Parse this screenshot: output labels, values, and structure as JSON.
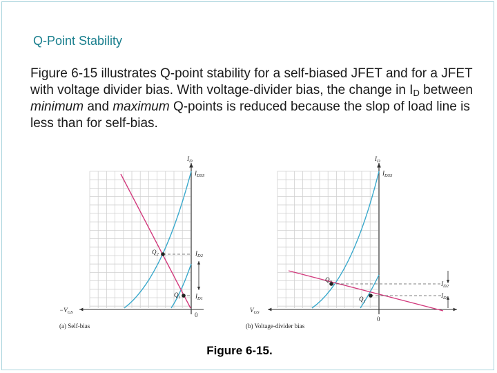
{
  "slide": {
    "title": "Q-Point Stability",
    "body": {
      "p1": "Figure 6-15 illustrates Q-point stability for a self-biased JFET and for a JFET with voltage divider bias. With voltage-divider bias, the change in I",
      "sub": "D",
      "p2": " between ",
      "em1": "minimum",
      "p3": " and ",
      "em2": "maximum",
      "p4": " Q-points is reduced because the slop of load line is less than for self-bias."
    },
    "caption": "Figure 6-15."
  },
  "diagram": {
    "panel_a": {
      "caption": "(a) Self-bias",
      "y_axis_label": "I",
      "y_axis_sub": "D",
      "x_axis_label": "−V",
      "x_axis_sub": "GS",
      "origin_label": "0",
      "idss_label": "I",
      "idss_sub": "DSS",
      "id2_label": "I",
      "id2_sub": "D2",
      "id1_label": "I",
      "id1_sub": "D1",
      "q2_label": "Q",
      "q2_sub": "2",
      "q1_label": "Q",
      "q1_sub": "1"
    },
    "panel_b": {
      "caption": "(b) Voltage-divider bias",
      "y_axis_label": "I",
      "y_axis_sub": "D",
      "x_axis_label": "V",
      "x_axis_sub": "GS",
      "origin_label": "0",
      "idss_label": "I",
      "idss_sub": "DSS",
      "id2_label": "I",
      "id2_sub": "D2",
      "id1_label": "I",
      "id1_sub": "D1",
      "q2_label": "Q",
      "q2_sub": "2",
      "q1_label": "Q",
      "q1_sub": "1"
    },
    "colors": {
      "transfer_curve": "#3aa9cc",
      "load_line": "#d23a7d",
      "grid": "#d0d0d0",
      "axis": "#333333"
    }
  }
}
